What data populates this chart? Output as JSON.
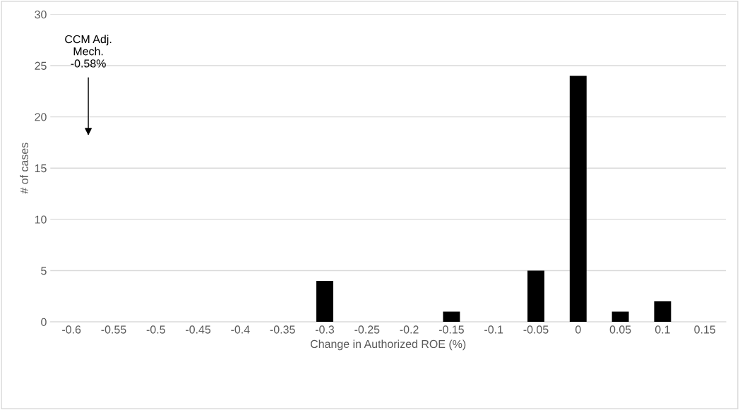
{
  "chart_data": {
    "type": "bar",
    "xlabel": "Change in Authorized ROE (%)",
    "ylabel": "# of cases",
    "categories": [
      "-0.6",
      "-0.55",
      "-0.5",
      "-0.45",
      "-0.4",
      "-0.35",
      "-0.3",
      "-0.25",
      "-0.2",
      "-0.15",
      "-0.1",
      "-0.05",
      "0",
      "0.05",
      "0.1",
      "0.15"
    ],
    "values": [
      0,
      0,
      0,
      0,
      0,
      0,
      4,
      0,
      0,
      1,
      0,
      5,
      24,
      1,
      2,
      0
    ],
    "color": "#000000",
    "ylim": [
      0,
      30
    ],
    "yticks": [
      0,
      5,
      10,
      15,
      20,
      25,
      30
    ],
    "grid": "y",
    "annotations": [
      "CCM Adj.\nMech.\n-0.58%"
    ]
  }
}
